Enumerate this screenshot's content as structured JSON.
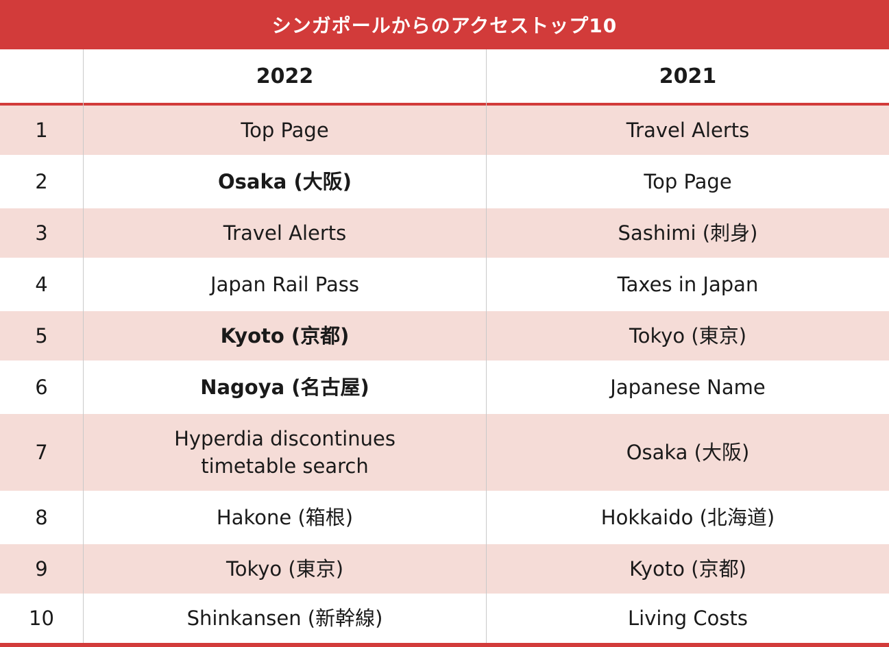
{
  "chart_data": {
    "type": "table",
    "title": "シンガポールからのアクセストップ10",
    "columns": [
      "",
      "2022",
      "2021"
    ],
    "rows": [
      {
        "rank": "1",
        "y2022": "Top Page",
        "y2022_bold": false,
        "y2021": "Travel Alerts"
      },
      {
        "rank": "2",
        "y2022": "Osaka (大阪)",
        "y2022_bold": true,
        "y2021": "Top Page"
      },
      {
        "rank": "3",
        "y2022": "Travel Alerts",
        "y2022_bold": false,
        "y2021": "Sashimi (刺身)"
      },
      {
        "rank": "4",
        "y2022": "Japan Rail Pass",
        "y2022_bold": false,
        "y2021": "Taxes in Japan"
      },
      {
        "rank": "5",
        "y2022": "Kyoto (京都)",
        "y2022_bold": true,
        "y2021": "Tokyo (東京)"
      },
      {
        "rank": "6",
        "y2022": "Nagoya (名古屋)",
        "y2022_bold": true,
        "y2021": "Japanese Name"
      },
      {
        "rank": "7",
        "y2022": "Hyperdia discontinues\ntimetable search",
        "y2022_bold": false,
        "y2021": "Osaka (大阪)"
      },
      {
        "rank": "8",
        "y2022": "Hakone (箱根)",
        "y2022_bold": false,
        "y2021": "Hokkaido (北海道)"
      },
      {
        "rank": "9",
        "y2022": "Tokyo (東京)",
        "y2022_bold": false,
        "y2021": "Kyoto (京都)"
      },
      {
        "rank": "10",
        "y2022": "Shinkansen (新幹線)",
        "y2022_bold": false,
        "y2021": "Living Costs"
      }
    ],
    "colors": {
      "accent": "#d23b3a",
      "shaded_row": "#f5dcd7",
      "plain_row": "#ffffff"
    }
  }
}
